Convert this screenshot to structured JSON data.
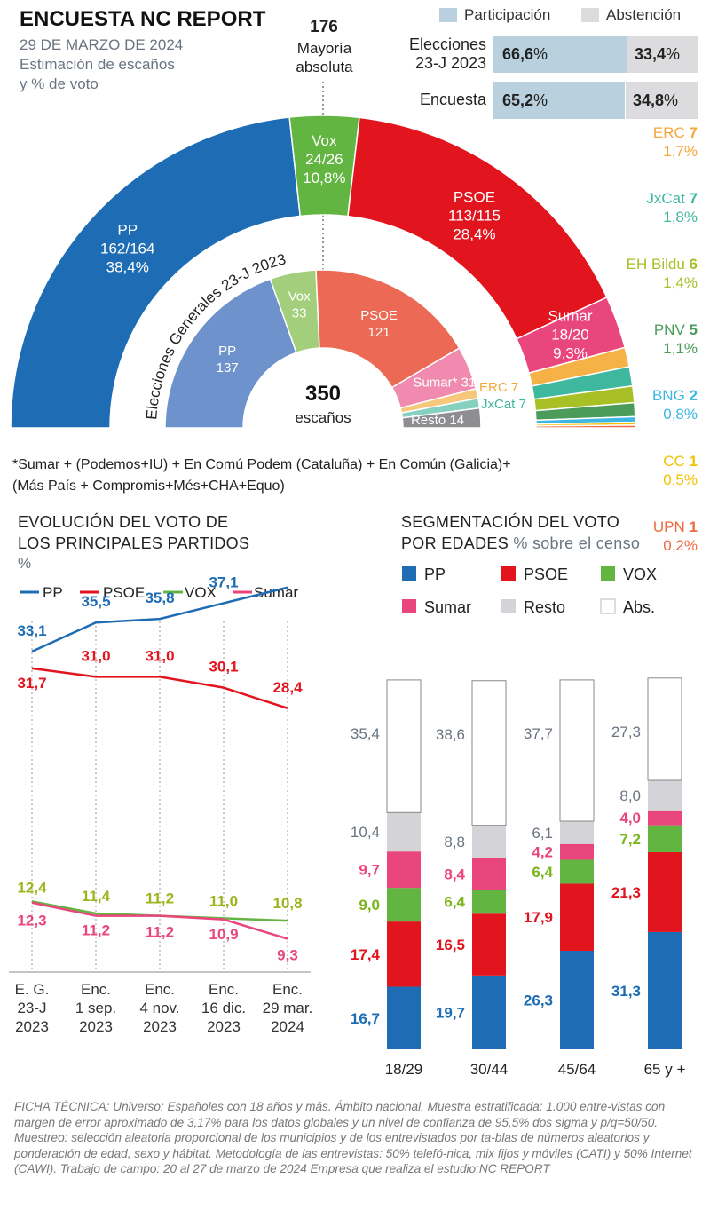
{
  "header": {
    "title": "ENCUESTA NC REPORT",
    "date": "29 DE MARZO DE 2024",
    "subtitle_line1": "Estimación de escaños",
    "subtitle_line2": "y % de voto",
    "majority_number": "176",
    "majority_label_line1": "Mayoría",
    "majority_label_line2": "absoluta"
  },
  "participation": {
    "legend_participation": "Participación",
    "legend_abstention": "Abstención",
    "colors": {
      "participation": "#b9d1de",
      "abstention": "#dcdcde"
    },
    "rows": [
      {
        "label_line1": "Elecciones",
        "label_line2": "23-J 2023",
        "participation": "66,6",
        "abstention": "33,4",
        "participation_value": 66.6
      },
      {
        "label_line1": "Encuesta",
        "label_line2": "",
        "participation": "65,2",
        "abstention": "34,8",
        "participation_value": 65.2
      }
    ],
    "pct_sign": "%"
  },
  "chart_data": [
    {
      "type": "pie",
      "name": "Encuesta (outer hemicycle)",
      "total_seats": 350,
      "slices": [
        {
          "party": "PP",
          "seats_label": "162/164",
          "pct": "38,4%",
          "seats": 163,
          "color": "#1e6db4"
        },
        {
          "party": "Vox",
          "seats_label": "24/26",
          "pct": "10,8%",
          "seats": 25,
          "color": "#62b540"
        },
        {
          "party": "PSOE",
          "seats_label": "113/115",
          "pct": "28,4%",
          "seats": 114,
          "color": "#e2141e"
        },
        {
          "party": "Sumar",
          "seats_label": "18/20",
          "pct": "9,3%",
          "seats": 19,
          "color": "#e8467c"
        },
        {
          "party": "ERC",
          "seats_label": "7",
          "pct": "1,7%",
          "seats": 7,
          "color": "#f6b246"
        },
        {
          "party": "JxCat",
          "seats_label": "7",
          "pct": "1,8%",
          "seats": 7,
          "color": "#3fb8a0"
        },
        {
          "party": "EH Bildu",
          "seats_label": "6",
          "pct": "1,4%",
          "seats": 6,
          "color": "#a8bf26"
        },
        {
          "party": "PNV",
          "seats_label": "5",
          "pct": "1,1%",
          "seats": 5,
          "color": "#4b9b5a"
        },
        {
          "party": "BNG",
          "seats_label": "2",
          "pct": "0,8%",
          "seats": 2,
          "color": "#3cb6e3"
        },
        {
          "party": "CC",
          "seats_label": "1",
          "pct": "0,5%",
          "seats": 1,
          "color": "#f2c200"
        },
        {
          "party": "UPN",
          "seats_label": "1",
          "pct": "0,2%",
          "seats": 1,
          "color": "#ee6a44"
        }
      ]
    },
    {
      "type": "pie",
      "name": "Elecciones Generales 23-J 2023 (inner hemicycle)",
      "title": "Elecciones Generales 23-J 2023",
      "center_number": "350",
      "center_label": "escaños",
      "slices": [
        {
          "party": "PP",
          "seats": 137,
          "color": "#6e92cc"
        },
        {
          "party": "Vox",
          "seats": 33,
          "color": "#a3cf7c"
        },
        {
          "party": "PSOE",
          "seats": 121,
          "color": "#ec6a55"
        },
        {
          "party": "Sumar*",
          "seats": 31,
          "color": "#f08aae"
        },
        {
          "party": "ERC",
          "seats": 7,
          "color": "#f7c87c"
        },
        {
          "party": "JxCat",
          "seats": 7,
          "color": "#86d0c0"
        },
        {
          "party": "Resto",
          "seats": 14,
          "color": "#8e8e92"
        }
      ]
    },
    {
      "type": "line",
      "title": "EVOLUCIÓN DEL VOTO DE LOS PRINCIPALES PARTIDOS",
      "ylabel": "%",
      "categories": [
        [
          "E. G.",
          "23-J",
          "2023"
        ],
        [
          "Enc.",
          "1 sep.",
          "2023"
        ],
        [
          "Enc.",
          "4 nov.",
          "2023"
        ],
        [
          "Enc.",
          "16 dic.",
          "2023"
        ],
        [
          "Enc.",
          "29 mar.",
          "2024"
        ]
      ],
      "series": [
        {
          "name": "PP",
          "color": "#1e6db4",
          "values": [
            33.1,
            35.5,
            35.8,
            37.1,
            38.4
          ],
          "labels": [
            "33,1",
            "35,5",
            "35,8",
            "37,1",
            "38,4"
          ]
        },
        {
          "name": "PSOE",
          "color": "#e2141e",
          "values": [
            31.7,
            31.0,
            31.0,
            30.1,
            28.4
          ],
          "labels": [
            "31,7",
            "31,0",
            "31,0",
            "30,1",
            "28,4"
          ]
        },
        {
          "name": "VOX",
          "color": "#62b540",
          "values": [
            12.4,
            11.4,
            11.2,
            11.0,
            10.8
          ],
          "labels": [
            "12,4",
            "11,4",
            "11,2",
            "11,0",
            "10,8"
          ]
        },
        {
          "name": "Sumar",
          "color": "#e8467c",
          "values": [
            12.3,
            11.2,
            11.2,
            10.9,
            9.3
          ],
          "labels": [
            "12,3",
            "11,2",
            "11,2",
            "10,9",
            "9,3"
          ]
        }
      ],
      "label_colors": {
        "VOX": "#9bb51c"
      }
    },
    {
      "type": "bar",
      "stacked": true,
      "title": "SEGMENTACIÓN DEL VOTO POR EDADES",
      "subtitle": "% sobre el censo",
      "categories": [
        "18/29",
        "30/44",
        "45/64",
        "65 y +"
      ],
      "series": [
        {
          "name": "PP",
          "color": "#1e6db4",
          "values": [
            16.7,
            19.7,
            26.3,
            31.3
          ],
          "labels": [
            "16,7",
            "19,7",
            "26,3",
            "31,3"
          ]
        },
        {
          "name": "PSOE",
          "color": "#e2141e",
          "values": [
            17.4,
            16.5,
            17.9,
            21.3
          ],
          "labels": [
            "17,4",
            "16,5",
            "17,9",
            "21,3"
          ]
        },
        {
          "name": "VOX",
          "color": "#62b540",
          "values": [
            9.0,
            6.4,
            6.4,
            7.2
          ],
          "labels": [
            "9,0",
            "6,4",
            "6,4",
            "7,2"
          ]
        },
        {
          "name": "Sumar",
          "color": "#e8467c",
          "values": [
            9.7,
            8.4,
            4.2,
            4.0
          ],
          "labels": [
            "9,7",
            "8,4",
            "4,2",
            "4,0"
          ]
        },
        {
          "name": "Resto",
          "color": "#d4d4d8",
          "values": [
            10.4,
            8.8,
            6.1,
            8.0
          ],
          "labels": [
            "10,4",
            "8,8",
            "6,1",
            "8,0"
          ]
        },
        {
          "name": "Abs.",
          "color": "#ffffff",
          "values": [
            35.4,
            38.6,
            37.7,
            27.3
          ],
          "labels": [
            "35,4",
            "38,6",
            "37,7",
            "27,3"
          ]
        }
      ],
      "label_colors": {
        "VOX": "#7ab51c",
        "Resto": "#6a7480",
        "Abs.": "#6a7480"
      }
    }
  ],
  "side_parties": [
    {
      "name": "ERC",
      "seats": "7",
      "pct": "1,7%",
      "color": "#f6a63a"
    },
    {
      "name": "JxCat",
      "seats": "7",
      "pct": "1,8%",
      "color": "#3fb8a0"
    },
    {
      "name": "EH Bildu",
      "seats": "6",
      "pct": "1,4%",
      "color": "#a8bf26"
    },
    {
      "name": "PNV",
      "seats": "5",
      "pct": "1,1%",
      "color": "#4b9b5a"
    },
    {
      "name": "BNG",
      "seats": "2",
      "pct": "0,8%",
      "color": "#3cb6e3"
    },
    {
      "name": "CC",
      "seats": "1",
      "pct": "0,5%",
      "color": "#f2c200"
    },
    {
      "name": "UPN",
      "seats": "1",
      "pct": "0,2%",
      "color": "#ee6a44"
    }
  ],
  "note_line1": "*Sumar + (Podemos+IU) + En Comú Podem (Cataluña) + En Común (Galicia)+",
  "note_line2": "(Más País + Compromis+Més+CHA+Equo)",
  "line_section": {
    "title_line1": "EVOLUCIÓN DEL VOTO DE",
    "title_line2": "LOS PRINCIPALES PARTIDOS",
    "unit": "%"
  },
  "bar_section": {
    "title_line1": "SEGMENTACIÓN DEL VOTO",
    "title_line2": "POR EDADES",
    "subtitle": "% sobre el censo"
  },
  "ficha": "FICHA TÉCNICA: Universo: Españoles con 18 años y más. Ámbito nacional. Muestra estratificada: 1.000 entre-vistas con margen de error aproximado de 3,17% para los datos globales y un nivel de confianza de 95,5% dos sigma y p/q=50/50. Muestreo: selección aleatoria proporcional de los municipios y de los entrevistados por ta-blas de números aleatorios y ponderación de edad, sexo y hábitat. Metodología de las entrevistas: 50% telefó-nica, mix fijos y móviles (CATI) y 50% Internet (CAWI). Trabajo de campo: 20 al 27 de marzo de 2024 Empresa que realiza el estudio:NC REPORT"
}
